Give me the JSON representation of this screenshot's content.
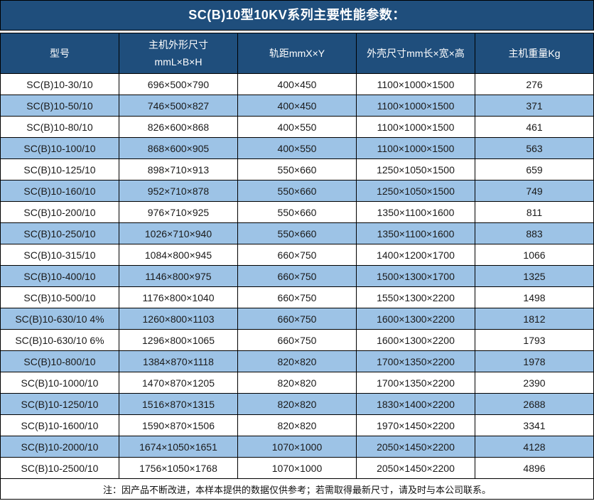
{
  "page": {
    "title": "SC(B)10型10KV系列主要性能参数："
  },
  "colors": {
    "header_bg": "#1F4E7C",
    "alt_row_bg": "#9DC3E6",
    "border": "#000000",
    "header_text": "#FFFFFF",
    "body_text": "#1A1A1A"
  },
  "table": {
    "columns": [
      {
        "key": "model",
        "label": "型号"
      },
      {
        "key": "main-dimensions",
        "label": "主机外形尺寸\nmmL×B×H"
      },
      {
        "key": "track-gauge",
        "label": "轨距mmX×Y"
      },
      {
        "key": "shell-dimensions",
        "label": "外壳尺寸mm长×宽×高"
      },
      {
        "key": "weight",
        "label": "主机重量Kg"
      }
    ],
    "rows": [
      [
        "SC(B)10-30/10",
        "696×500×790",
        "400×450",
        "1100×1000×1500",
        "276"
      ],
      [
        "SC(B)10-50/10",
        "746×500×827",
        "400×450",
        "1100×1000×1500",
        "371"
      ],
      [
        "SC(B)10-80/10",
        "826×600×868",
        "400×550",
        "1100×1000×1500",
        "461"
      ],
      [
        "SC(B)10-100/10",
        "868×600×905",
        "400×550",
        "1100×1000×1500",
        "563"
      ],
      [
        "SC(B)10-125/10",
        "898×710×913",
        "550×660",
        "1250×1050×1500",
        "659"
      ],
      [
        "SC(B)10-160/10",
        "952×710×878",
        "550×660",
        "1250×1050×1500",
        "749"
      ],
      [
        "SC(B)10-200/10",
        "976×710×925",
        "550×660",
        "1350×1100×1600",
        "811"
      ],
      [
        "SC(B)10-250/10",
        "1026×710×940",
        "550×660",
        "1350×1100×1600",
        "883"
      ],
      [
        "SC(B)10-315/10",
        "1084×800×945",
        "660×750",
        "1400×1200×1700",
        "1066"
      ],
      [
        "SC(B)10-400/10",
        "1146×800×975",
        "660×750",
        "1500×1300×1700",
        "1325"
      ],
      [
        "SC(B)10-500/10",
        "1176×800×1040",
        "660×750",
        "1550×1300×2200",
        "1498"
      ],
      [
        "SC(B)10-630/10 4%",
        "1260×800×1103",
        "660×750",
        "1600×1300×2200",
        "1812"
      ],
      [
        "SC(B)10-630/10 6%",
        "1296×800×1065",
        "660×750",
        "1600×1300×2200",
        "1793"
      ],
      [
        "SC(B)10-800/10",
        "1384×870×1118",
        "820×820",
        "1700×1350×2200",
        "1978"
      ],
      [
        "SC(B)10-1000/10",
        "1470×870×1205",
        "820×820",
        "1700×1350×2200",
        "2390"
      ],
      [
        "SC(B)10-1250/10",
        "1516×870×1315",
        "820×820",
        "1830×1400×2200",
        "2688"
      ],
      [
        "SC(B)10-1600/10",
        "1590×870×1506",
        "820×820",
        "1970×1450×2200",
        "3341"
      ],
      [
        "SC(B)10-2000/10",
        "1674×1050×1651",
        "1070×1000",
        "2050×1450×2200",
        "4128"
      ],
      [
        "SC(B)10-2500/10",
        "1756×1050×1768",
        "1070×1000",
        "2050×1450×2200",
        "4896"
      ]
    ]
  },
  "note": "注：因产品不断改进，本样本提供的数据仅供参考；若需取得最新尺寸，请及时与本公司联系。"
}
